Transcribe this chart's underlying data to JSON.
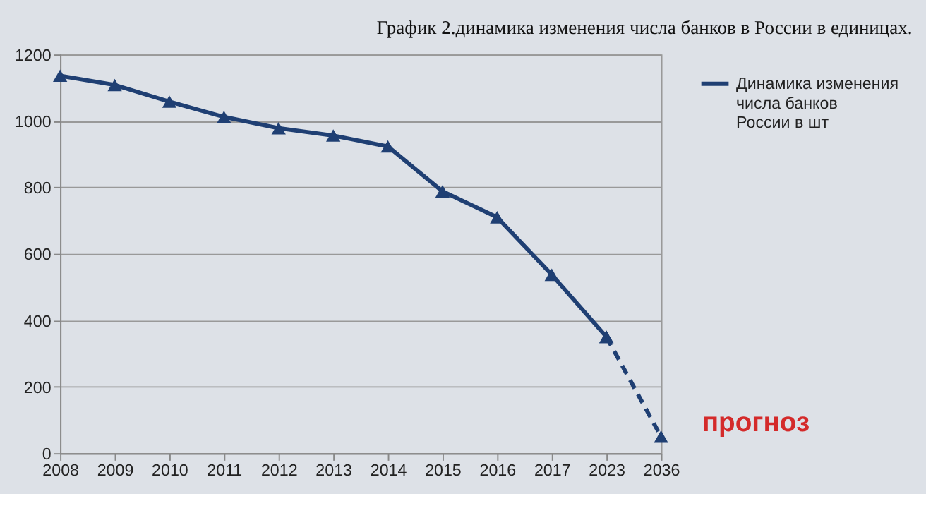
{
  "chart_data": {
    "type": "line",
    "title": "График 2.динамика изменения числа банков в России в единицах.",
    "categories": [
      "2008",
      "2009",
      "2010",
      "2011",
      "2012",
      "2013",
      "2014",
      "2015",
      "2016",
      "2017",
      "2023",
      "2036"
    ],
    "series": [
      {
        "name": "Динамика изменения числа банков России в шт",
        "color": "#1f3f73",
        "values": [
          1136,
          1108,
          1058,
          1012,
          978,
          956,
          923,
          788,
          710,
          537,
          350,
          null
        ]
      },
      {
        "color": "#1f3f73",
        "line_style": "dashed",
        "values": [
          null,
          null,
          null,
          null,
          null,
          null,
          null,
          null,
          null,
          null,
          350,
          50
        ]
      }
    ],
    "ylim": [
      0,
      1200
    ],
    "yticks": [
      0,
      200,
      400,
      600,
      800,
      1000,
      1200
    ],
    "grid": "y",
    "legend": "right",
    "marker": "triangle",
    "line_style": "solid",
    "annotations": [
      {
        "text": "прогноз",
        "x": "2036",
        "y": 50
      }
    ]
  }
}
